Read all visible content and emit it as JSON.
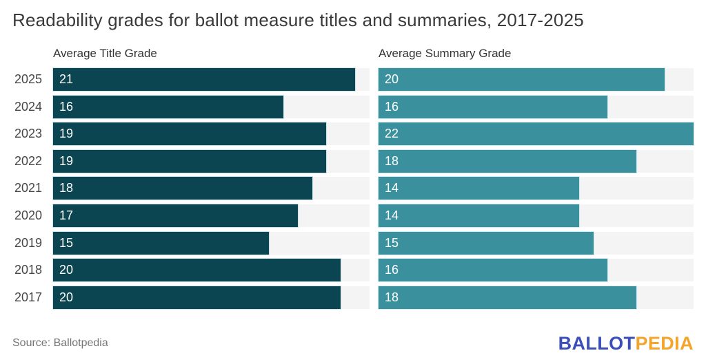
{
  "title": "Readability grades for ballot measure titles and summaries, 2017-2025",
  "headers": {
    "left": "Average Title Grade",
    "right": "Average Summary Grade"
  },
  "footer": {
    "source": "Source: Ballotpedia",
    "logo_ballot": "BALLOT",
    "logo_pedia": "PEDIA"
  },
  "colors": {
    "title_bar": "#0b4551",
    "summary_bar": "#3a919d",
    "track": "#f4f4f4",
    "logo_blue": "#3a4eb9",
    "logo_orange": "#f5a42b",
    "title_text": "#3a3a3a",
    "source_text": "#757575"
  },
  "chart_data": {
    "type": "bar",
    "orientation": "horizontal",
    "title": "Readability grades for ballot measure titles and summaries, 2017-2025",
    "categories": [
      "2025",
      "2024",
      "2023",
      "2022",
      "2021",
      "2020",
      "2019",
      "2018",
      "2017"
    ],
    "series": [
      {
        "name": "Average Title Grade",
        "color": "#0b4551",
        "values": [
          21,
          16,
          19,
          19,
          18,
          17,
          15,
          20,
          20
        ]
      },
      {
        "name": "Average Summary Grade",
        "color": "#3a919d",
        "values": [
          20,
          16,
          22,
          18,
          14,
          14,
          15,
          16,
          18
        ]
      }
    ],
    "xlim": [
      0,
      22
    ],
    "value_labels": "inside-left",
    "grid": false,
    "legend_position": "column-headers",
    "source": "Ballotpedia"
  }
}
